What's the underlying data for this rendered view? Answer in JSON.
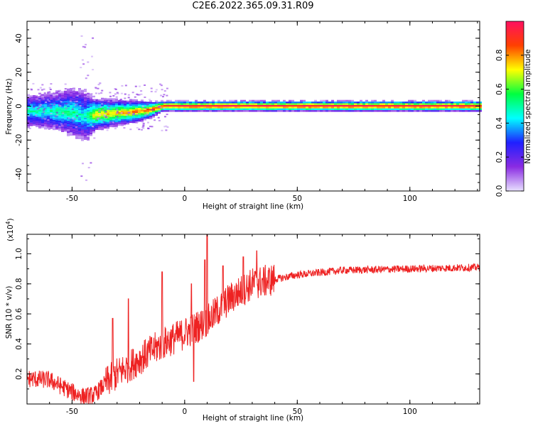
{
  "title": "C2E6.2022.365.09.31.R09",
  "chart_data": [
    {
      "id": "spectrogram",
      "type": "heatmap",
      "xlabel": "Height of straight line (km)",
      "ylabel": "Frequency (Hz)",
      "xlim": [
        -70,
        131
      ],
      "ylim": [
        -50,
        50
      ],
      "xticks": [
        -50,
        0,
        50,
        100
      ],
      "yticks": [
        -40,
        -20,
        0,
        20,
        40
      ],
      "colorbar": {
        "label": "Normalized spectral amplitude",
        "range": [
          0,
          1
        ],
        "ticks": [
          "0.0",
          "0.2",
          "0.4",
          "0.6",
          "0.8"
        ],
        "colors": [
          "#e8e0ff",
          "#8a2be2",
          "#2020ff",
          "#00ffff",
          "#00ff40",
          "#ffff00",
          "#ff4000",
          "#ff1060"
        ]
      },
      "ridge": [
        {
          "x": -70,
          "f": -3,
          "amp": 0.5,
          "spread": 6
        },
        {
          "x": -60,
          "f": -3,
          "amp": 0.5,
          "spread": 7
        },
        {
          "x": -50,
          "f": -4,
          "amp": 0.55,
          "spread": 9
        },
        {
          "x": -45,
          "f": -6,
          "amp": 0.45,
          "spread": 10
        },
        {
          "x": -40,
          "f": -5,
          "amp": 0.75,
          "spread": 6
        },
        {
          "x": -30,
          "f": -4,
          "amp": 0.8,
          "spread": 5
        },
        {
          "x": -20,
          "f": -3,
          "amp": 0.85,
          "spread": 4
        },
        {
          "x": -15,
          "f": -2,
          "amp": 0.88,
          "spread": 3
        },
        {
          "x": -10,
          "f": 0,
          "amp": 0.95,
          "spread": 2
        },
        {
          "x": 0,
          "f": 0,
          "amp": 1.0,
          "spread": 2
        },
        {
          "x": 50,
          "f": 0,
          "amp": 1.0,
          "spread": 2
        },
        {
          "x": 131,
          "f": 0,
          "amp": 1.0,
          "spread": 2
        }
      ]
    },
    {
      "id": "snr",
      "type": "line",
      "xlabel": "Height of straight line (km)",
      "ylabel": "SNR (10 * v/v)",
      "yscale_label": "(x10",
      "yscale_exponent": "4",
      "xlim": [
        -70,
        131
      ],
      "ylim": [
        0,
        1.13
      ],
      "xticks": [
        -50,
        0,
        50,
        100
      ],
      "yticks": [
        "0.2",
        "0.4",
        "0.6",
        "0.8",
        "1.0"
      ],
      "color": "#ee2222",
      "envelope": [
        {
          "x": -70,
          "y": 0.17
        },
        {
          "x": -60,
          "y": 0.16
        },
        {
          "x": -50,
          "y": 0.08
        },
        {
          "x": -45,
          "y": 0.05
        },
        {
          "x": -40,
          "y": 0.06
        },
        {
          "x": -35,
          "y": 0.14
        },
        {
          "x": -30,
          "y": 0.2
        },
        {
          "x": -20,
          "y": 0.3
        },
        {
          "x": -10,
          "y": 0.4
        },
        {
          "x": 0,
          "y": 0.47
        },
        {
          "x": 10,
          "y": 0.55
        },
        {
          "x": 20,
          "y": 0.7
        },
        {
          "x": 30,
          "y": 0.8
        },
        {
          "x": 40,
          "y": 0.83
        },
        {
          "x": 50,
          "y": 0.86
        },
        {
          "x": 70,
          "y": 0.89
        },
        {
          "x": 100,
          "y": 0.9
        },
        {
          "x": 131,
          "y": 0.91
        }
      ],
      "spikes": [
        {
          "x": 10,
          "y": 1.13
        },
        {
          "x": 9,
          "y": 0.96
        },
        {
          "x": -10,
          "y": 0.88
        },
        {
          "x": -25,
          "y": 0.7
        },
        {
          "x": -32,
          "y": 0.57
        },
        {
          "x": 3,
          "y": 0.8
        },
        {
          "x": 17,
          "y": 0.92
        },
        {
          "x": 26,
          "y": 0.98
        },
        {
          "x": 32,
          "y": 1.02
        },
        {
          "x": 4,
          "y": 0.15
        }
      ]
    }
  ]
}
